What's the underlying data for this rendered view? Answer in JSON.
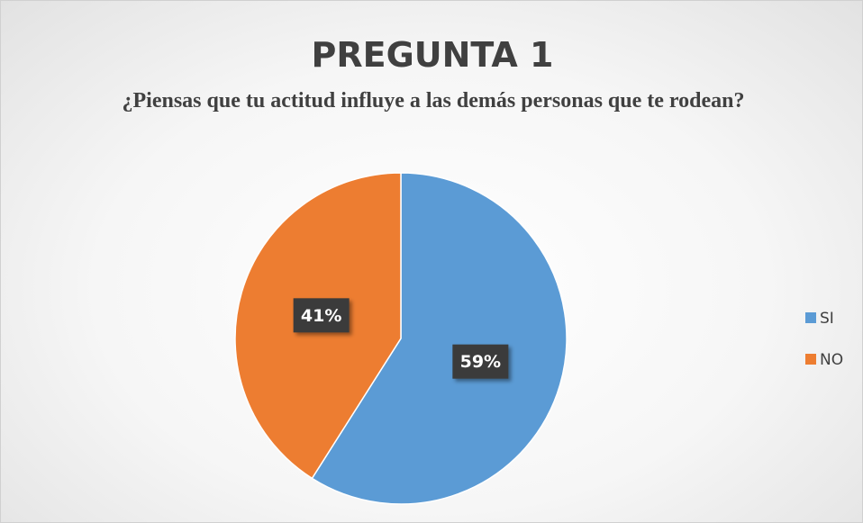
{
  "chart_data": {
    "type": "pie",
    "title": "PREGUNTA 1",
    "subtitle": "¿Piensas que tu actitud influye a las demás personas que te rodean?",
    "categories": [
      "SI",
      "NO"
    ],
    "values": [
      59,
      41
    ],
    "value_labels": [
      "59%",
      "41%"
    ],
    "colors": [
      "#5b9bd5",
      "#ed7d31"
    ],
    "legend": "right"
  }
}
